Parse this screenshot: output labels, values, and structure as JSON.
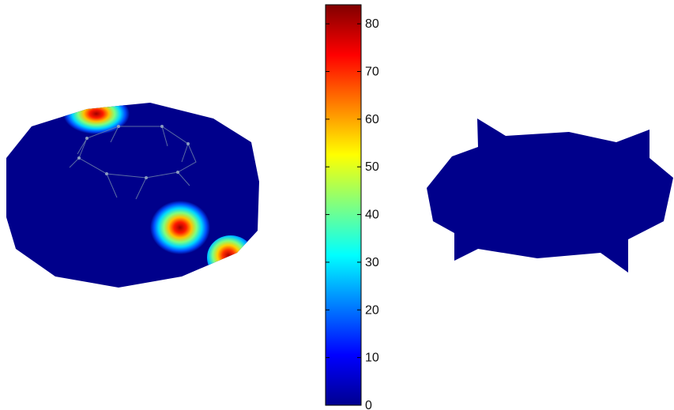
{
  "chart_data": [
    {
      "type": "heatmap",
      "surface": "ring-mesh",
      "colormap": "jet",
      "background_color": "#00008b",
      "mesh_color": "#6b7fa8",
      "hotspots": [
        {
          "region": "top-left-rim",
          "peak": 84
        },
        {
          "region": "lower-right-center",
          "peak": 82
        },
        {
          "region": "right-edge",
          "peak": 80
        }
      ]
    },
    {
      "type": "colorbar",
      "colormap": "jet",
      "range": [
        0,
        84
      ],
      "ticks": [
        0,
        10,
        20,
        30,
        40,
        50,
        60,
        70,
        80
      ],
      "tick_labels": [
        "0",
        "10",
        "20",
        "30",
        "40",
        "50",
        "60",
        "70",
        "80"
      ]
    },
    {
      "type": "heatmap",
      "surface": "flat-star-mesh",
      "colormap": "jet",
      "uniform_value": 0,
      "fill_color": "#00008b"
    }
  ]
}
